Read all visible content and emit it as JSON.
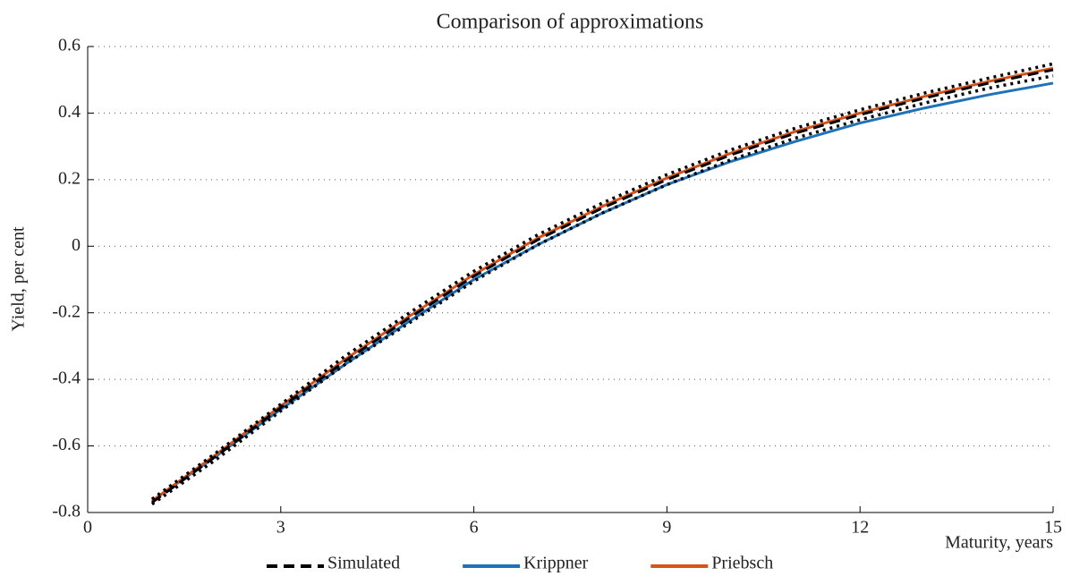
{
  "chart_data": {
    "type": "line",
    "title": "Comparison of approximations",
    "xlabel": "Maturity, years",
    "ylabel": "Yield, per cent",
    "x": [
      1,
      2,
      3,
      4,
      5,
      6,
      7,
      8,
      9,
      10,
      11,
      12,
      13,
      14,
      15
    ],
    "series": [
      {
        "name": "Simulated",
        "color": "#000000",
        "style": "dashed",
        "values": [
          -0.77,
          -0.63,
          -0.485,
          -0.345,
          -0.215,
          -0.09,
          0.02,
          0.115,
          0.2,
          0.275,
          0.34,
          0.395,
          0.445,
          0.49,
          0.53
        ]
      },
      {
        "name": "Krippner",
        "color": "#1f72b8",
        "style": "solid",
        "values": [
          -0.765,
          -0.63,
          -0.49,
          -0.355,
          -0.225,
          -0.1,
          0.005,
          0.1,
          0.185,
          0.255,
          0.315,
          0.37,
          0.415,
          0.455,
          0.49
        ]
      },
      {
        "name": "Priebsch",
        "color": "#d95319",
        "style": "solid",
        "values": [
          -0.765,
          -0.625,
          -0.48,
          -0.34,
          -0.21,
          -0.085,
          0.025,
          0.12,
          0.205,
          0.28,
          0.345,
          0.4,
          0.45,
          0.495,
          0.535
        ]
      },
      {
        "color": "#000000",
        "style": "dotted",
        "values": [
          -0.76,
          -0.62,
          -0.475,
          -0.33,
          -0.2,
          -0.075,
          0.035,
          0.13,
          0.215,
          0.29,
          0.355,
          0.41,
          0.46,
          0.505,
          0.548
        ]
      },
      {
        "color": "#000000",
        "style": "dotted",
        "values": [
          -0.775,
          -0.64,
          -0.495,
          -0.355,
          -0.23,
          -0.105,
          0.005,
          0.1,
          0.185,
          0.26,
          0.325,
          0.38,
          0.43,
          0.475,
          0.512
        ]
      }
    ],
    "xlim": [
      0,
      15
    ],
    "xticks": [
      0,
      3,
      6,
      9,
      12,
      15
    ],
    "ylim": [
      -0.8,
      0.6
    ],
    "yticks": [
      -0.8,
      -0.6,
      -0.4,
      -0.2,
      0,
      0.2,
      0.4,
      0.6
    ],
    "grid": true,
    "legend": "bottom"
  }
}
